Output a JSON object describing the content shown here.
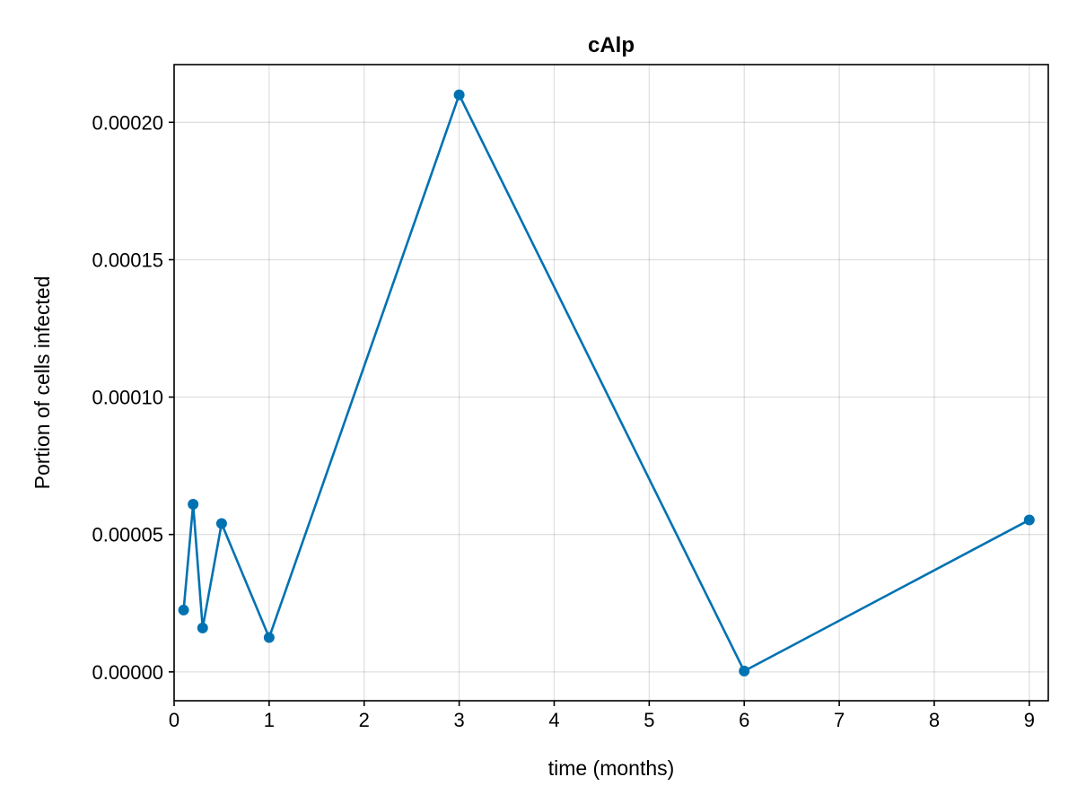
{
  "chart_data": {
    "type": "line",
    "title": "cAlp",
    "xlabel": "time (months)",
    "ylabel": "Portion of cells infected",
    "xlim": [
      0,
      9.2
    ],
    "ylim": [
      -1.05e-05,
      0.000221
    ],
    "xticks": [
      0,
      1,
      2,
      3,
      4,
      5,
      6,
      7,
      8,
      9
    ],
    "xtick_labels": [
      "0",
      "1",
      "2",
      "3",
      "4",
      "5",
      "6",
      "7",
      "8",
      "9"
    ],
    "yticks": [
      0,
      5e-05,
      0.0001,
      0.00015,
      0.0002
    ],
    "ytick_labels": [
      "0.00000",
      "0.00005",
      "0.00010",
      "0.00015",
      "0.00020"
    ],
    "grid": true,
    "series": [
      {
        "color": "#0072b2",
        "markers": true,
        "x": [
          0.1,
          0.2,
          0.3,
          0.5,
          1,
          3,
          6,
          9
        ],
        "y": [
          2.25e-05,
          6.1e-05,
          1.6e-05,
          5.4e-05,
          1.25e-05,
          0.00021,
          3e-07,
          5.53e-05
        ]
      }
    ]
  }
}
